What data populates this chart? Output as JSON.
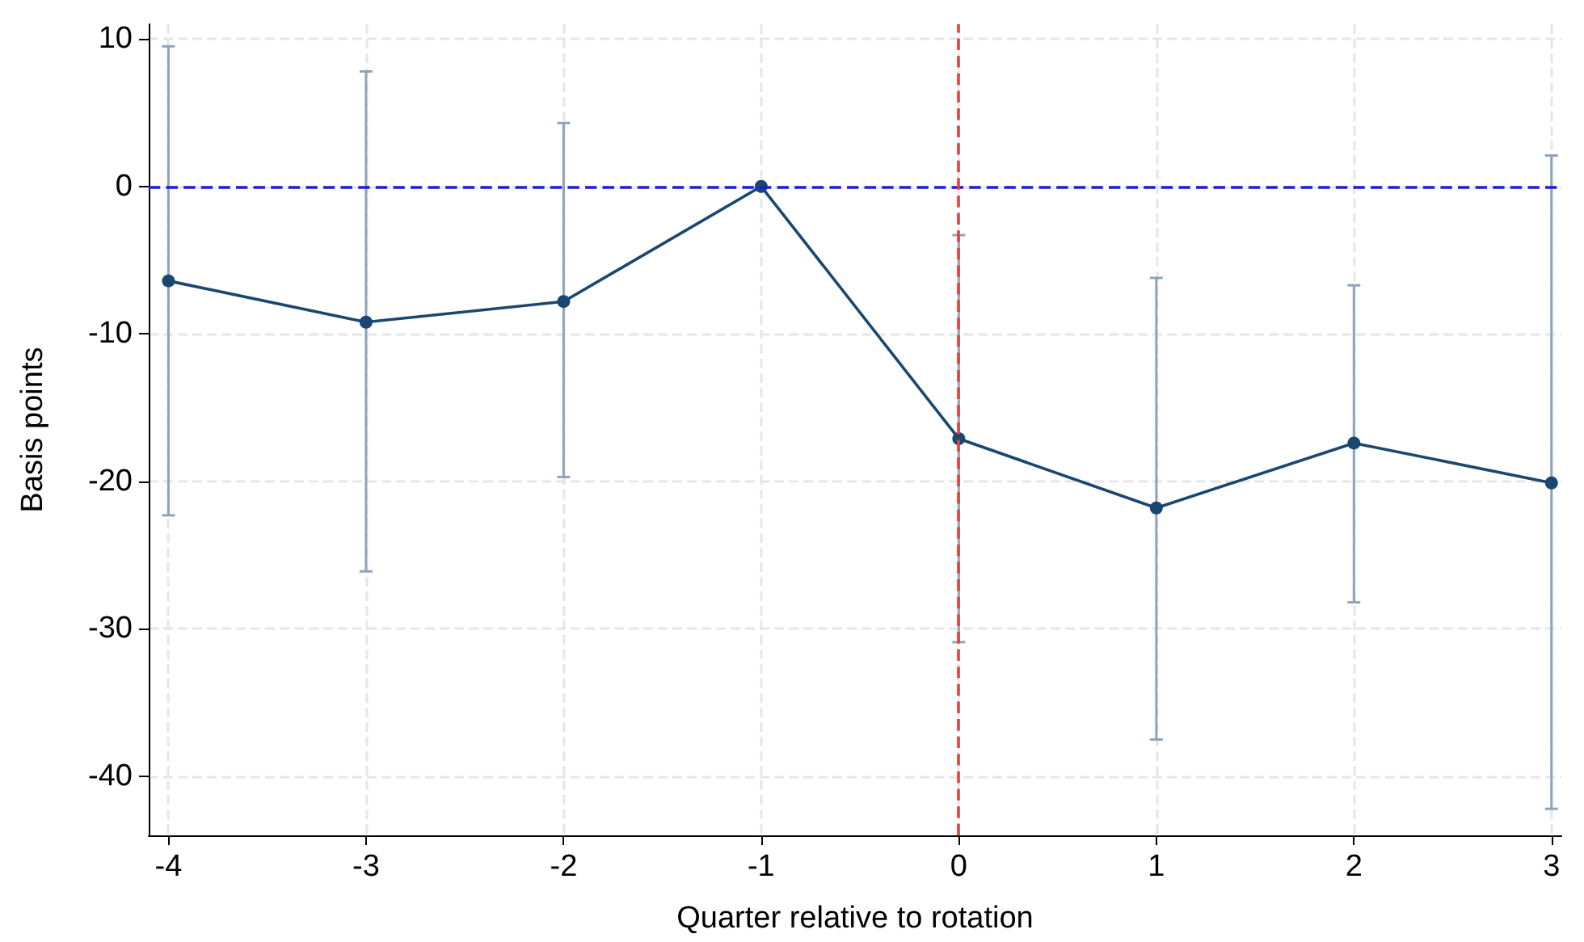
{
  "chart_data": {
    "type": "line",
    "xlabel": "Quarter relative to rotation",
    "ylabel": "Basis points",
    "x": [
      -4,
      -3,
      -2,
      -1,
      0,
      1,
      2,
      3
    ],
    "series": [
      {
        "color": "#1a476f",
        "values": [
          -6.4,
          -9.2,
          -7.8,
          0,
          -17.1,
          -21.8,
          -17.4,
          -20.1
        ],
        "errors": [
          [
            -22.3,
            9.5
          ],
          [
            -26.1,
            7.8
          ],
          [
            -19.7,
            4.3
          ],
          null,
          [
            -30.9,
            -3.3
          ],
          [
            -37.5,
            -6.2
          ],
          [
            -28.2,
            -6.7
          ],
          [
            -42.2,
            2.1
          ]
        ]
      }
    ],
    "xlim": [
      -4.1,
      3.05
    ],
    "xticks": [
      -4,
      -3,
      -2,
      -1,
      0,
      1,
      2,
      3
    ],
    "ylim": [
      -44,
      11
    ],
    "yticks": [
      -40,
      -30,
      -20,
      -10,
      0,
      10
    ],
    "ref_lines": [
      {
        "axis": "y",
        "value": 0,
        "color": "#1f1fd0",
        "line_style": "dashed"
      },
      {
        "axis": "x",
        "value": 0,
        "color": "#e8413a",
        "line_style": "dashed"
      }
    ],
    "grid": true,
    "marker": "circle",
    "line_style": "solid"
  }
}
